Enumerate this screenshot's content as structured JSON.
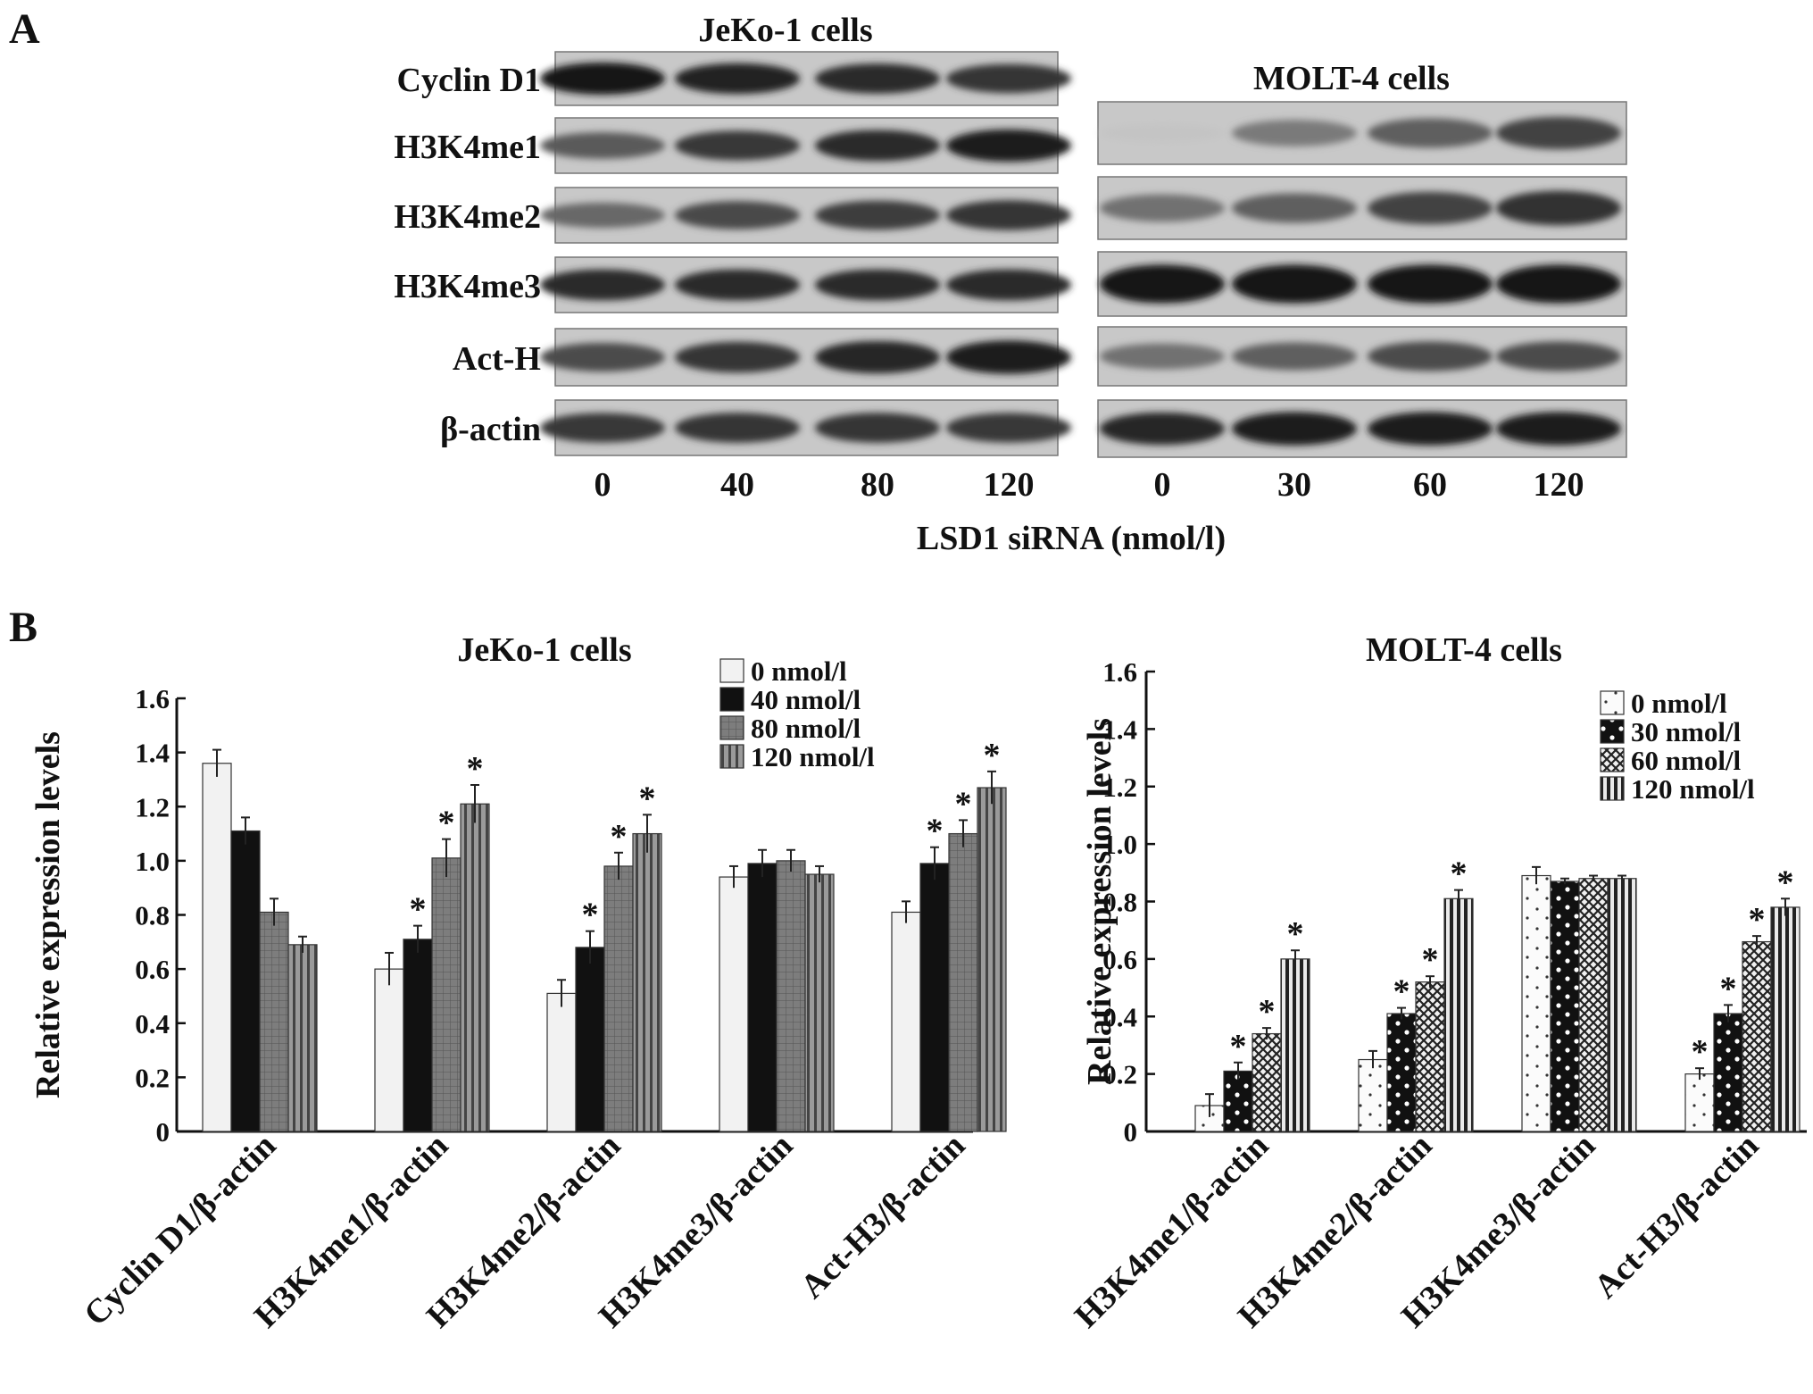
{
  "panel_a": {
    "label": "A",
    "blots": [
      {
        "title": "JeKo-1 cells",
        "rows": [
          "Cyclin D1",
          "H3K4me1",
          "H3K4me2",
          "H3K4me3",
          "Act-H",
          "β-actin"
        ],
        "lanes": [
          "0",
          "40",
          "80",
          "120"
        ],
        "band_intensity": [
          [
            1.0,
            0.92,
            0.88,
            0.82
          ],
          [
            0.62,
            0.8,
            0.88,
            0.95
          ],
          [
            0.55,
            0.72,
            0.78,
            0.82
          ],
          [
            0.88,
            0.88,
            0.88,
            0.88
          ],
          [
            0.7,
            0.82,
            0.9,
            0.95
          ],
          [
            0.8,
            0.82,
            0.82,
            0.8
          ]
        ]
      },
      {
        "title": "MOLT-4 cells",
        "rows": [
          "",
          "",
          "",
          "",
          "",
          ""
        ],
        "lanes": [
          "0",
          "30",
          "60",
          "120"
        ],
        "band_intensity": [
          [
            0.05,
            0.45,
            0.6,
            0.75
          ],
          [
            0.5,
            0.6,
            0.75,
            0.85
          ],
          [
            1.0,
            1.0,
            1.0,
            1.0
          ],
          [
            0.5,
            0.6,
            0.7,
            0.7
          ],
          [
            0.9,
            0.95,
            0.95,
            0.95
          ],
          [
            0.0,
            0.0,
            0.0,
            0.0
          ]
        ]
      }
    ],
    "xlabel": "LSD1 siRNA (nmol/l)"
  },
  "panel_b": {
    "label": "B"
  },
  "chart_data": [
    {
      "type": "bar",
      "title": "JeKo-1 cells",
      "ylabel": "Relative expression levels",
      "xlabel": "",
      "ylim": [
        0,
        1.6
      ],
      "yticks": [
        "0",
        "0.2",
        "0.4",
        "0.6",
        "0.8",
        "1.0",
        "1.2",
        "1.4",
        "1.6"
      ],
      "categories": [
        "Cyclin D1/β-actin",
        "H3K4me1/β-actin",
        "H3K4me2/β-actin",
        "H3K4me3/β-actin",
        "Act-H3/β-actin"
      ],
      "legend_position": "top-right",
      "series": [
        {
          "name": "0 nmol/l",
          "color": "#f2f2f2",
          "values": [
            1.36,
            0.6,
            0.51,
            0.94,
            0.81
          ],
          "errors": [
            0.05,
            0.06,
            0.05,
            0.04,
            0.04
          ],
          "significant": [
            false,
            false,
            false,
            false,
            false
          ]
        },
        {
          "name": "40 nmol/l",
          "color": "#111111",
          "values": [
            1.11,
            0.71,
            0.68,
            0.99,
            0.99
          ],
          "errors": [
            0.05,
            0.05,
            0.06,
            0.05,
            0.06
          ],
          "significant": [
            false,
            true,
            true,
            false,
            true
          ]
        },
        {
          "name": "80 nmol/l",
          "color": "#7a7a7a",
          "values": [
            0.81,
            1.01,
            0.98,
            1.0,
            1.1
          ],
          "errors": [
            0.05,
            0.07,
            0.05,
            0.04,
            0.05
          ],
          "significant": [
            false,
            true,
            true,
            false,
            true
          ]
        },
        {
          "name": "120 nmol/l",
          "color": "#555555",
          "values": [
            0.69,
            1.21,
            1.1,
            0.95,
            1.27
          ],
          "errors": [
            0.03,
            0.07,
            0.07,
            0.03,
            0.06
          ],
          "significant": [
            false,
            true,
            true,
            false,
            true
          ]
        }
      ],
      "annotation": "*"
    },
    {
      "type": "bar",
      "title": "MOLT-4 cells",
      "ylabel": "Relative expression levels",
      "xlabel": "",
      "ylim": [
        0,
        1.6
      ],
      "yticks": [
        "0",
        "0.2",
        "0.4",
        "0.6",
        "0.8",
        "1.0",
        "1.2",
        "1.4",
        "1.6"
      ],
      "categories": [
        "H3K4me1/β-actin",
        "H3K4me2/β-actin",
        "H3K4me3/β-actin",
        "Act-H3/β-actin"
      ],
      "legend_position": "top-right",
      "series": [
        {
          "name": "0 nmol/l",
          "color": "#f2f2f2",
          "values": [
            0.09,
            0.25,
            0.89,
            0.2
          ],
          "errors": [
            0.04,
            0.03,
            0.03,
            0.02
          ],
          "significant": [
            false,
            false,
            false,
            true
          ]
        },
        {
          "name": "30 nmol/l",
          "color": "#111111",
          "values": [
            0.21,
            0.41,
            0.87,
            0.41
          ],
          "errors": [
            0.03,
            0.02,
            0.01,
            0.03
          ],
          "significant": [
            true,
            true,
            false,
            true
          ]
        },
        {
          "name": "60 nmol/l",
          "color": "#999999",
          "values": [
            0.34,
            0.52,
            0.88,
            0.66
          ],
          "errors": [
            0.02,
            0.02,
            0.01,
            0.02
          ],
          "significant": [
            true,
            true,
            false,
            true
          ]
        },
        {
          "name": "120 nmol/l",
          "color": "#444444",
          "values": [
            0.6,
            0.81,
            0.88,
            0.78
          ],
          "errors": [
            0.03,
            0.03,
            0.01,
            0.03
          ],
          "significant": [
            true,
            true,
            false,
            true
          ]
        }
      ],
      "annotation": "*"
    }
  ]
}
